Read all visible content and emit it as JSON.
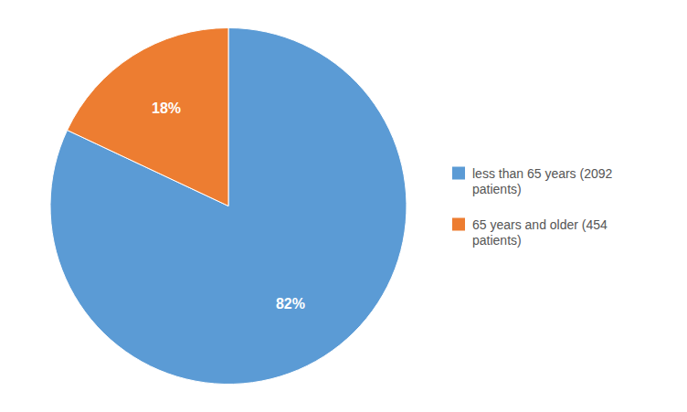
{
  "chart_data": {
    "type": "pie",
    "categories": [
      "less than 65 years (2092\npatients)",
      "65 years and older (454\npatients)"
    ],
    "values": [
      82,
      18
    ],
    "value_labels": [
      "82%",
      "18%"
    ],
    "colors": [
      "#5B9BD5",
      "#ED7D31"
    ],
    "data_labels": true,
    "legend": "right"
  }
}
